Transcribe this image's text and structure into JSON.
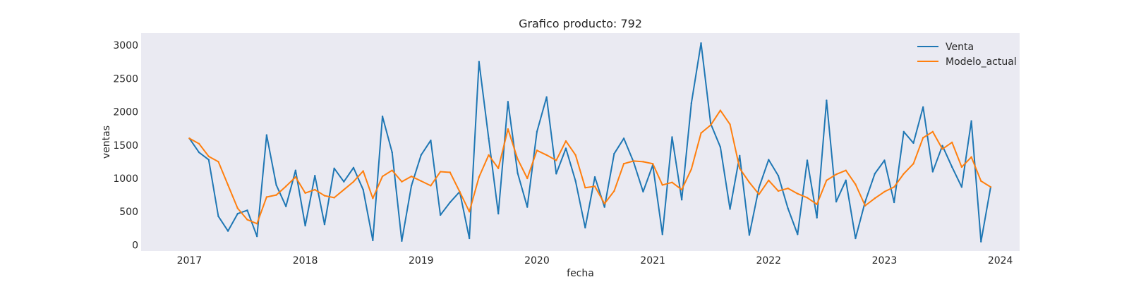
{
  "chart_data": {
    "type": "line",
    "title": "Grafico producto: 792",
    "xlabel": "fecha",
    "ylabel": "ventas",
    "x_ticks": [
      "2017",
      "2018",
      "2019",
      "2020",
      "2021",
      "2022",
      "2023",
      "2024"
    ],
    "y_ticks": [
      "0",
      "500",
      "1000",
      "1500",
      "2000",
      "2500",
      "3000"
    ],
    "x_range": [
      "2016-08",
      "2024-03"
    ],
    "ylim": [
      -90,
      3180
    ],
    "grid": false,
    "legend_position": "top-right",
    "x": [
      "2017-01",
      "2017-02",
      "2017-03",
      "2017-04",
      "2017-05",
      "2017-06",
      "2017-07",
      "2017-08",
      "2017-09",
      "2017-10",
      "2017-11",
      "2017-12",
      "2018-01",
      "2018-02",
      "2018-03",
      "2018-04",
      "2018-05",
      "2018-06",
      "2018-07",
      "2018-08",
      "2018-09",
      "2018-10",
      "2018-11",
      "2018-12",
      "2019-01",
      "2019-02",
      "2019-03",
      "2019-04",
      "2019-05",
      "2019-06",
      "2019-07",
      "2019-08",
      "2019-09",
      "2019-10",
      "2019-11",
      "2019-12",
      "2020-01",
      "2020-02",
      "2020-03",
      "2020-04",
      "2020-05",
      "2020-06",
      "2020-07",
      "2020-08",
      "2020-09",
      "2020-10",
      "2020-11",
      "2020-12",
      "2021-01",
      "2021-02",
      "2021-03",
      "2021-04",
      "2021-05",
      "2021-06",
      "2021-07",
      "2021-08",
      "2021-09",
      "2021-10",
      "2021-11",
      "2021-12",
      "2022-01",
      "2022-02",
      "2022-03",
      "2022-04",
      "2022-05",
      "2022-06",
      "2022-07",
      "2022-08",
      "2022-09",
      "2022-10",
      "2022-11",
      "2022-12",
      "2023-01",
      "2023-02",
      "2023-03",
      "2023-04",
      "2023-05",
      "2023-06",
      "2023-07",
      "2023-08",
      "2023-09",
      "2023-10",
      "2023-11",
      "2023-12"
    ],
    "series": [
      {
        "name": "Venta",
        "color": "#1f77b4",
        "values": [
          1600,
          1390,
          1280,
          430,
          210,
          470,
          520,
          130,
          1650,
          900,
          580,
          1120,
          290,
          1040,
          310,
          1150,
          950,
          1160,
          830,
          70,
          1930,
          1390,
          60,
          890,
          1350,
          1570,
          450,
          640,
          800,
          100,
          2750,
          1600,
          470,
          2150,
          1080,
          570,
          1700,
          2220,
          1070,
          1450,
          960,
          260,
          1020,
          570,
          1370,
          1600,
          1250,
          800,
          1200,
          160,
          1620,
          680,
          2130,
          3030,
          1820,
          1470,
          540,
          1340,
          150,
          860,
          1280,
          1040,
          550,
          160,
          1270,
          410,
          2170,
          650,
          970,
          100,
          650,
          1070,
          1270,
          640,
          1700,
          1530,
          2070,
          1100,
          1490,
          1170,
          870,
          1860,
          50,
          870
        ]
      },
      {
        "name": "Modelo_actual",
        "color": "#ff7f0e",
        "values": [
          1600,
          1520,
          1330,
          1250,
          900,
          550,
          380,
          320,
          720,
          750,
          880,
          1020,
          780,
          830,
          740,
          710,
          830,
          950,
          1110,
          700,
          1030,
          1120,
          950,
          1030,
          960,
          890,
          1100,
          1090,
          800,
          500,
          1020,
          1350,
          1150,
          1740,
          1290,
          1000,
          1420,
          1350,
          1270,
          1560,
          1350,
          860,
          880,
          620,
          810,
          1220,
          1260,
          1250,
          1220,
          900,
          940,
          830,
          1140,
          1680,
          1800,
          2020,
          1810,
          1150,
          940,
          760,
          970,
          810,
          850,
          770,
          710,
          610,
          970,
          1060,
          1120,
          910,
          590,
          700,
          800,
          870,
          1070,
          1220,
          1610,
          1700,
          1440,
          1540,
          1170,
          1320,
          960,
          870
        ]
      }
    ]
  }
}
